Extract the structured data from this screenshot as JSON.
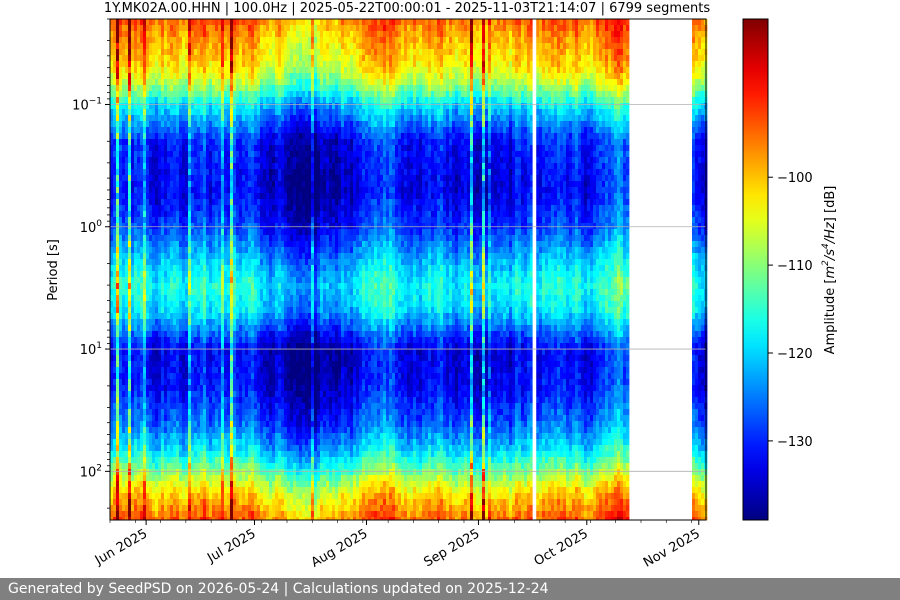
{
  "chart_data": {
    "type": "heatmap",
    "title": "1Y.MK02A.00.HHN | 100.0Hz | 2025-05-22T00:00:01 - 2025-11-03T21:14:07 | 6799 segments",
    "xlabel": "",
    "ylabel": "Period [s]",
    "x_range": [
      "2025-05-22",
      "2025-11-03"
    ],
    "x_ticks": [
      {
        "date": "2025-06-01",
        "label": "Jun 2025"
      },
      {
        "date": "2025-07-01",
        "label": "Jul 2025"
      },
      {
        "date": "2025-08-01",
        "label": "Aug 2025"
      },
      {
        "date": "2025-09-01",
        "label": "Sep 2025"
      },
      {
        "date": "2025-10-01",
        "label": "Oct 2025"
      },
      {
        "date": "2025-11-01",
        "label": "Nov 2025"
      }
    ],
    "y_scale": "log",
    "y_inverted": true,
    "y_range": [
      0.02,
      250
    ],
    "y_ticks": [
      {
        "value": 0.1,
        "base": "10",
        "exp": "−1"
      },
      {
        "value": 1,
        "base": "10",
        "exp": "0"
      },
      {
        "value": 10,
        "base": "10",
        "exp": "1"
      },
      {
        "value": 100,
        "base": "10",
        "exp": "2"
      }
    ],
    "grid": "horizontal",
    "data_gaps": [
      [
        "2025-09-16",
        "2025-09-17"
      ],
      [
        "2025-10-13",
        "2025-10-30"
      ]
    ],
    "amplitude_profile_db": [
      {
        "period": 0.02,
        "db": -96
      },
      {
        "period": 0.03,
        "db": -100
      },
      {
        "period": 0.05,
        "db": -104
      },
      {
        "period": 0.07,
        "db": -110
      },
      {
        "period": 0.1,
        "db": -120
      },
      {
        "period": 0.2,
        "db": -132
      },
      {
        "period": 0.5,
        "db": -134
      },
      {
        "period": 1,
        "db": -130
      },
      {
        "period": 2,
        "db": -122
      },
      {
        "period": 3,
        "db": -118
      },
      {
        "period": 5,
        "db": -121
      },
      {
        "period": 10,
        "db": -134
      },
      {
        "period": 20,
        "db": -133
      },
      {
        "period": 40,
        "db": -128
      },
      {
        "period": 70,
        "db": -120
      },
      {
        "period": 100,
        "db": -112
      },
      {
        "period": 150,
        "db": -103
      },
      {
        "period": 250,
        "db": -96
      }
    ],
    "colorbar": {
      "label": "Amplitude [m²/s⁴/Hz] [dB]",
      "range": [
        -139,
        -82
      ],
      "ticks": [
        -100,
        -110,
        -120,
        -130
      ],
      "colormap": "jet"
    }
  },
  "footer": {
    "text": "Generated by SeedPSD on 2026-05-24 | Calculations updated on 2025-12-24"
  }
}
